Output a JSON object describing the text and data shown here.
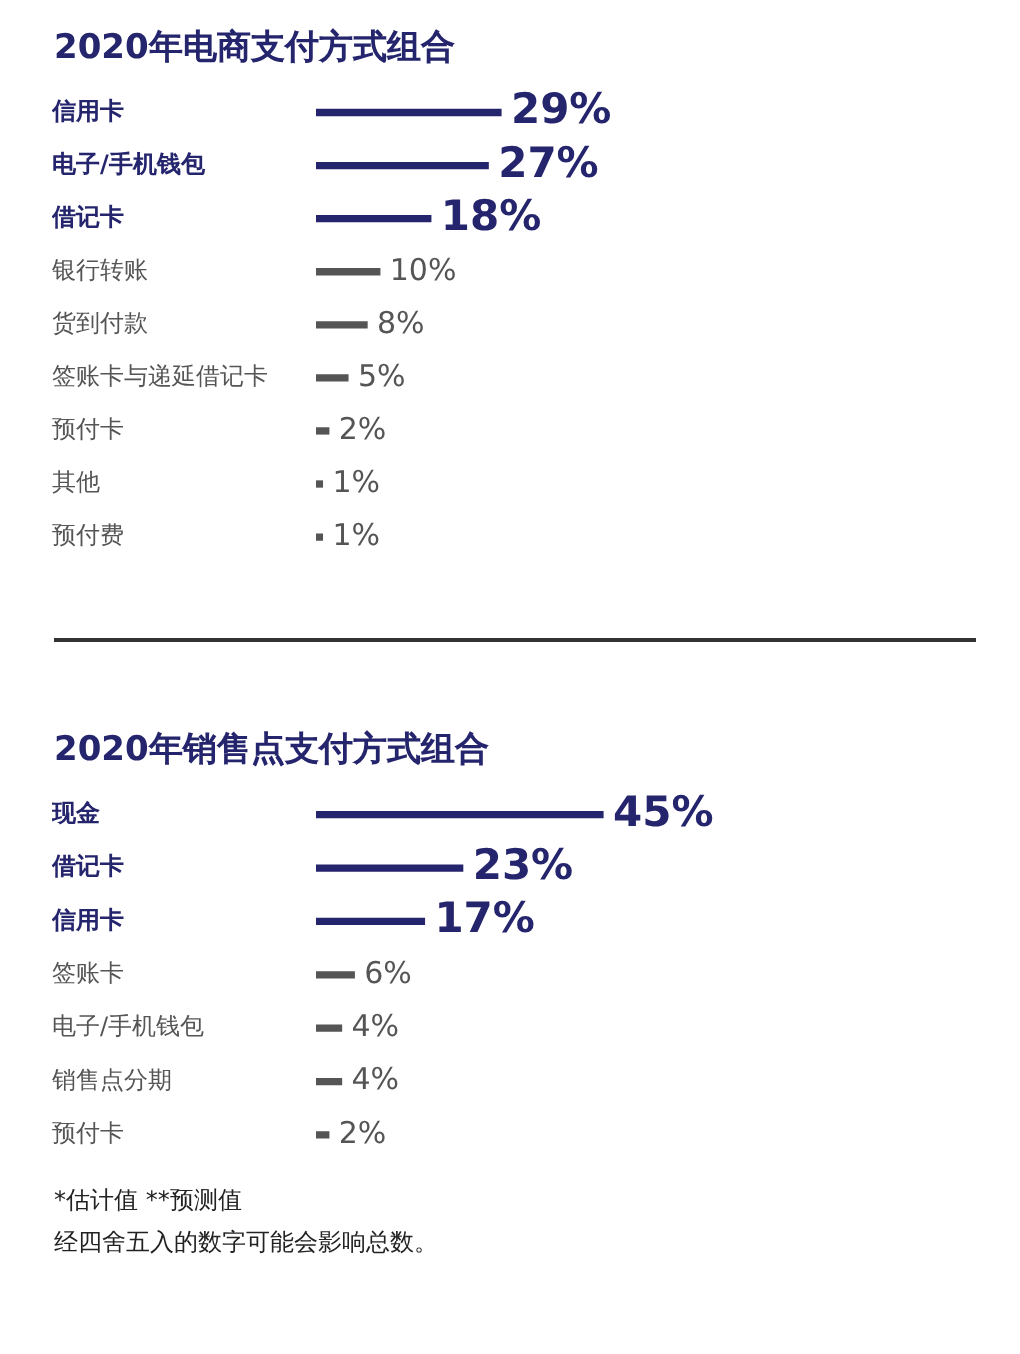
{
  "chart_data": [
    {
      "type": "bar",
      "orientation": "horizontal",
      "title": "2020年电商支付方式组合",
      "categories": [
        "信用卡",
        "电子/手机钱包",
        "借记卡",
        "银行转账",
        "货到付款",
        "签账卡与递延借记卡",
        "预付卡",
        "其他",
        "预付费"
      ],
      "values": [
        29,
        27,
        18,
        10,
        8,
        5,
        2,
        1,
        1
      ],
      "value_labels": [
        "29%",
        "27%",
        "18%",
        "10%",
        "8%",
        "5%",
        "2%",
        "1%",
        "1%"
      ],
      "colors": [
        "#25256e",
        "#25256e",
        "#25256e",
        "#555555",
        "#555555",
        "#555555",
        "#555555",
        "#555555",
        "#555555"
      ],
      "grid": false,
      "legend": false
    },
    {
      "type": "bar",
      "orientation": "horizontal",
      "title": "2020年销售点支付方式组合",
      "categories": [
        "现金",
        "借记卡",
        "信用卡",
        "签账卡",
        "电子/手机钱包",
        "销售点分期",
        "预付卡"
      ],
      "values": [
        45,
        23,
        17,
        6,
        4,
        4,
        2
      ],
      "value_labels": [
        "45%",
        "23%",
        "17%",
        "6%",
        "4%",
        "4%",
        "2%"
      ],
      "colors": [
        "#25256e",
        "#25256e",
        "#25256e",
        "#555555",
        "#555555",
        "#555555",
        "#555555"
      ],
      "grid": false,
      "legend": false,
      "annotations": [
        "*估计值   **预测值",
        "经四舍五入的数字可能会影响总数。"
      ]
    }
  ]
}
